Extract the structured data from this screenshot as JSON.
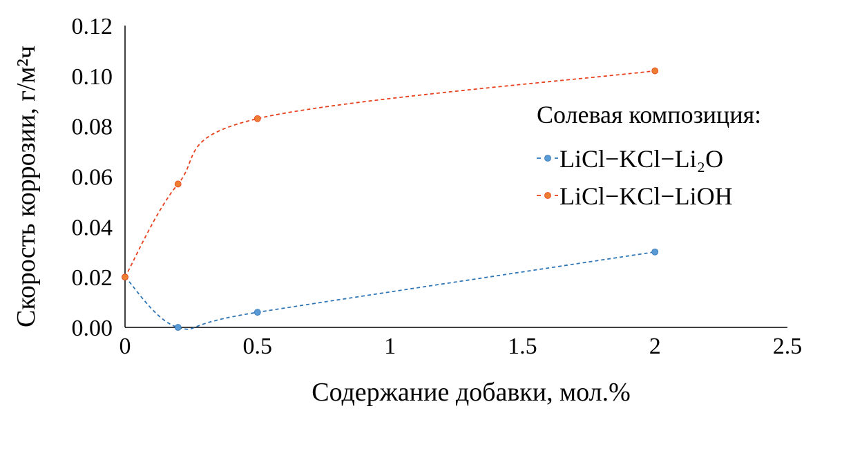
{
  "chart_data": {
    "type": "line",
    "title": "",
    "xlabel": "Содержание добавки, мол.%",
    "ylabel": "Скорость коррозии, г/м²ч",
    "xlim": [
      0,
      2.5
    ],
    "ylim": [
      0,
      0.12
    ],
    "xticks": [
      "0",
      "0.5",
      "1",
      "1.5",
      "2",
      "2.5"
    ],
    "yticks": [
      "0.00",
      "0.02",
      "0.04",
      "0.06",
      "0.08",
      "0.10",
      "0.12"
    ],
    "grid": false,
    "smoothed": true,
    "legend": {
      "title": "Солевая композиция:",
      "placement": "right"
    },
    "series": [
      {
        "name": "LiCl−KCl−Li₂O",
        "color": "#2e75b6",
        "marker_color": "#5b9bd5",
        "x": [
          0,
          0.2,
          0.5,
          2
        ],
        "y": [
          0.02,
          0.0,
          0.006,
          0.03
        ]
      },
      {
        "name": "LiCl−KCl−LiOH",
        "color": "#e8401c",
        "marker_color": "#ed7d31",
        "x": [
          0,
          0.2,
          0.5,
          2
        ],
        "y": [
          0.02,
          0.057,
          0.083,
          0.102
        ]
      }
    ]
  }
}
